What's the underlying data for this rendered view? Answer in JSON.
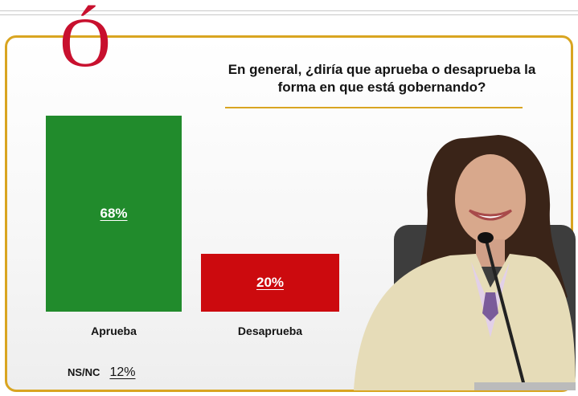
{
  "header": {
    "logo_letter": "Ó"
  },
  "question": {
    "line1": "En general, ¿diría que aprueba o desaprueba la",
    "line2": "forma en que está gobernando?"
  },
  "chart_data": {
    "type": "bar",
    "categories": [
      "Aprueba",
      "Desaprueba"
    ],
    "values": [
      68,
      20
    ],
    "value_labels": [
      "68%",
      "20%"
    ],
    "colors": [
      "#218b2c",
      "#cc0a0e"
    ],
    "ylim": [
      0,
      100
    ],
    "other": {
      "label": "NS/NC",
      "value": 12,
      "value_label": "12%"
    }
  },
  "colors": {
    "accent": "#d9a521",
    "logo_red": "#c8102e"
  }
}
